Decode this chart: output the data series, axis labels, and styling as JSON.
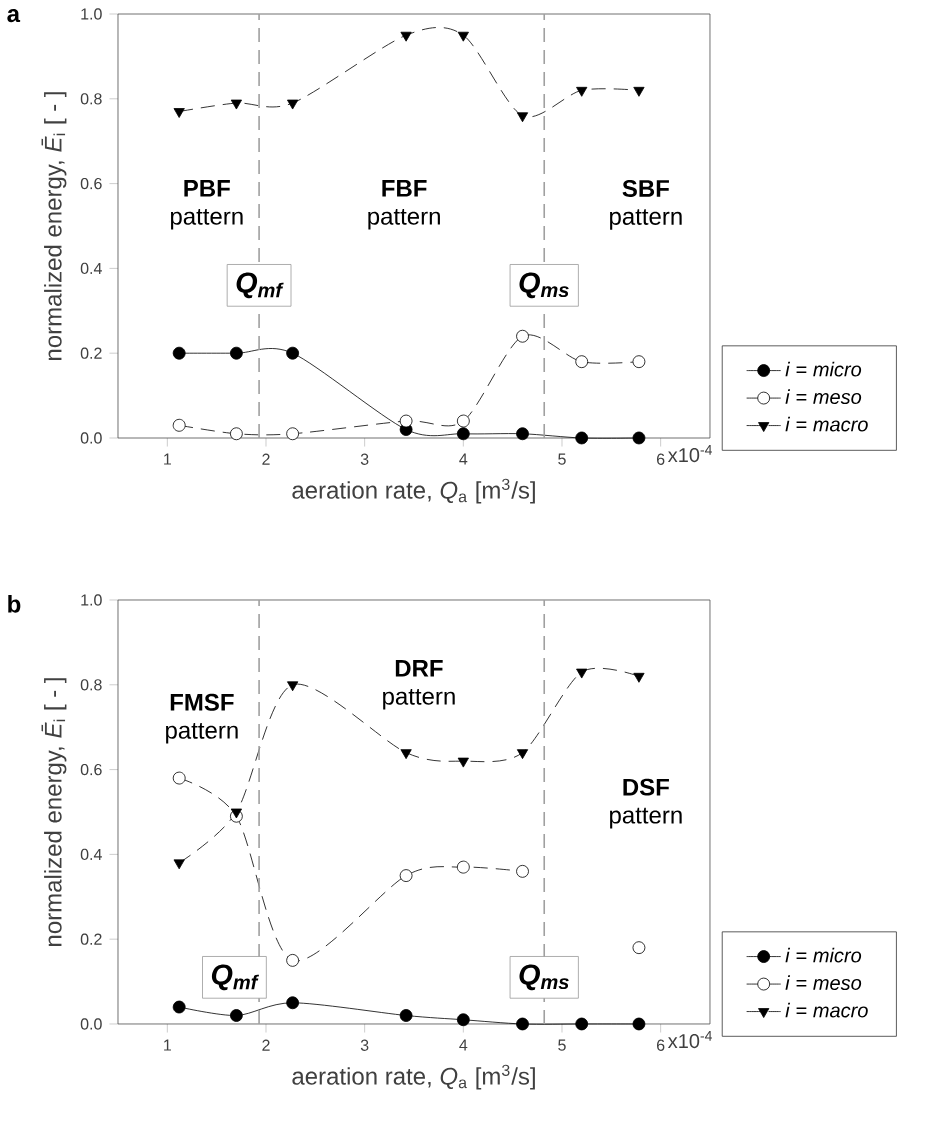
{
  "chart_data": [
    {
      "type": "line",
      "title": "**a**",
      "xlabel": "aeration rate, *Q*$_{a}$ [m$^{3}$/s]",
      "ylabel": "normalized energy, *Ē*$_{i}$ [ - ]",
      "x": [
        1.12,
        1.7,
        2.27,
        3.42,
        4.0,
        4.6,
        5.2,
        5.78
      ],
      "xlim": [
        0.5,
        6.5
      ],
      "xticks": [
        1,
        2,
        3,
        4,
        5,
        6
      ],
      "ylim": [
        0,
        1
      ],
      "yticks": [
        {
          "value": 0,
          "label": "0.0"
        },
        {
          "value": 0.2,
          "label": "0.2"
        },
        {
          "value": 0.4,
          "label": "0.4"
        },
        {
          "value": 0.6,
          "label": "0.6"
        },
        {
          "value": 0.8,
          "label": "0.8"
        },
        {
          "value": 1,
          "label": "1.0"
        }
      ],
      "series": [
        {
          "name": "*i* = *micro*",
          "color": "#000000",
          "marker": "circle",
          "line_style": "solid",
          "values": [
            0.2,
            0.2,
            0.2,
            0.02,
            0.01,
            0.01,
            0.0,
            0.0
          ]
        },
        {
          "name": "*i* = *meso*",
          "color": "#ffffff",
          "marker": "circle",
          "line_style": "dashed",
          "values": [
            0.03,
            0.01,
            0.01,
            0.04,
            0.04,
            0.24,
            0.18,
            0.18
          ]
        },
        {
          "name": "*i* = *macro*",
          "color": "#000000",
          "marker": "triangle",
          "line_style": "dashed",
          "values": [
            0.77,
            0.79,
            0.79,
            0.95,
            0.95,
            0.76,
            0.82,
            0.82
          ]
        }
      ],
      "ref_lines": [
        {
          "axis": "x",
          "value": 1.93,
          "label": "Q$_{mf}$",
          "color": "#a0a0a0",
          "line_style": "dashed"
        },
        {
          "axis": "x",
          "value": 4.82,
          "label": "Q$_{ms}$",
          "color": "#a0a0a0",
          "line_style": "dashed"
        }
      ],
      "annotations": [
        "**PBF** pattern",
        "**FBF** pattern",
        "**SBF** pattern",
        "x10$^{-4}$"
      ],
      "legend": "right",
      "grid": false
    },
    {
      "type": "line",
      "title": "**b**",
      "xlabel": "aeration rate, *Q*$_{a}$ [m$^{3}$/s]",
      "ylabel": "normalized energy, *Ē*$_{i}$ [ - ]",
      "x": [
        1.12,
        1.7,
        2.27,
        3.42,
        4.0,
        4.6,
        5.2,
        5.78
      ],
      "xlim": [
        0.5,
        6.5
      ],
      "xticks": [
        1,
        2,
        3,
        4,
        5,
        6
      ],
      "ylim": [
        0,
        1
      ],
      "yticks": [
        {
          "value": 0,
          "label": "0.0"
        },
        {
          "value": 0.2,
          "label": "0.2"
        },
        {
          "value": 0.4,
          "label": "0.4"
        },
        {
          "value": 0.6,
          "label": "0.6"
        },
        {
          "value": 0.8,
          "label": "0.8"
        },
        {
          "value": 1,
          "label": "1.0"
        }
      ],
      "series": [
        {
          "name": "*i* = *micro*",
          "color": "#000000",
          "marker": "circle",
          "line_style": "solid",
          "values": [
            0.04,
            0.02,
            0.05,
            0.02,
            0.01,
            0.0,
            0.0,
            0.0
          ]
        },
        {
          "name": "*i* = *meso*",
          "color": "#ffffff",
          "marker": "circle",
          "line_style": "dashed",
          "values": [
            0.58,
            0.49,
            0.15,
            0.35,
            0.37,
            0.36,
            null,
            0.18
          ]
        },
        {
          "name": "*i* = *macro*",
          "color": "#000000",
          "marker": "triangle",
          "line_style": "dashed",
          "values": [
            0.38,
            0.5,
            0.8,
            0.64,
            0.62,
            0.64,
            0.83,
            0.82
          ]
        }
      ],
      "ref_lines": [
        {
          "axis": "x",
          "value": 1.93,
          "label": "Q$_{mf}$",
          "color": "#a0a0a0",
          "line_style": "dashed"
        },
        {
          "axis": "x",
          "value": 4.82,
          "label": "Q$_{ms}$",
          "color": "#a0a0a0",
          "line_style": "dashed"
        }
      ],
      "annotations": [
        "**FMSF** pattern",
        "**DRF** pattern",
        "**DSF** pattern",
        "x10$^{-4}$"
      ],
      "legend": "right",
      "grid": false
    }
  ]
}
